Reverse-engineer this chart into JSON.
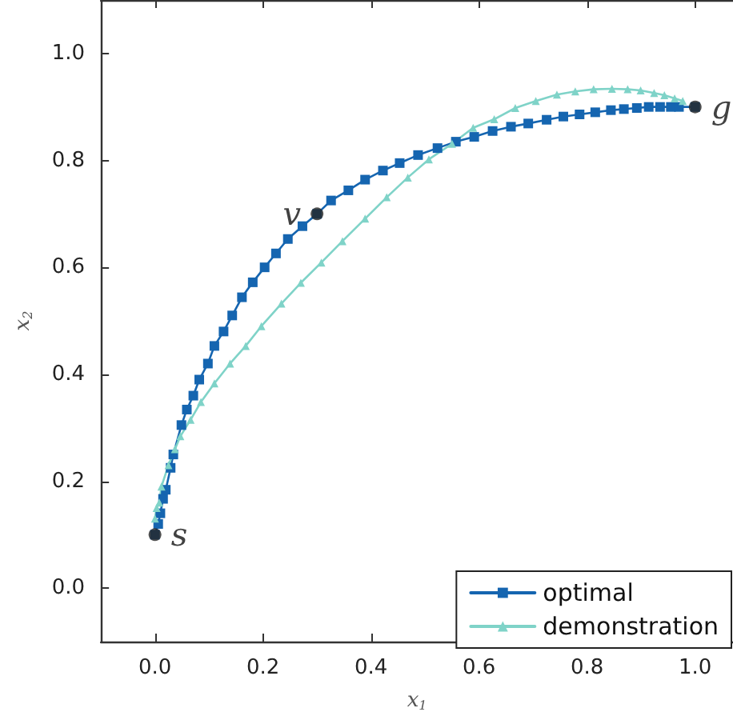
{
  "chart_data": {
    "type": "line",
    "xlabel": "x$_{1}$",
    "ylabel": "x$_{2}$",
    "x": [
      0,
      0.006,
      0.01,
      0.015,
      0.02,
      0.029,
      0.034,
      0.049,
      0.059,
      0.071,
      0.082,
      0.098,
      0.11,
      0.127,
      0.143,
      0.161,
      0.181,
      0.203,
      0.224,
      0.246,
      0.273,
      0.3,
      0.326,
      0.358,
      0.389,
      0.422,
      0.453,
      0.487,
      0.523,
      0.557,
      0.591,
      0.625,
      0.659,
      0.691,
      0.725,
      0.756,
      0.786,
      0.815,
      0.844,
      0.868,
      0.892,
      0.914,
      0.935,
      0.955,
      0.97,
      1.0
    ],
    "series": [
      {
        "name": "optimal",
        "color": "#1565b0",
        "marker": "square",
        "values": [
          0.1,
          0.12,
          0.14,
          0.167,
          0.184,
          0.225,
          0.25,
          0.305,
          0.334,
          0.36,
          0.39,
          0.42,
          0.453,
          0.48,
          0.51,
          0.544,
          0.572,
          0.6,
          0.626,
          0.653,
          0.677,
          0.7,
          0.725,
          0.744,
          0.764,
          0.781,
          0.795,
          0.81,
          0.823,
          0.835,
          0.844,
          0.855,
          0.863,
          0.869,
          0.876,
          0.882,
          0.886,
          0.89,
          0.894,
          0.896,
          0.898,
          0.9,
          0.9,
          0.9,
          0.9,
          0.9
        ]
      },
      {
        "name": "demonstration",
        "color": "#7fd3c8",
        "marker": "triangle",
        "x": [
          0,
          0.003,
          0.008,
          0.012,
          0.025,
          0.037,
          0.047,
          0.066,
          0.085,
          0.11,
          0.139,
          0.168,
          0.197,
          0.234,
          0.27,
          0.308,
          0.347,
          0.389,
          0.429,
          0.468,
          0.507,
          0.55,
          0.589,
          0.628,
          0.667,
          0.705,
          0.744,
          0.778,
          0.812,
          0.846,
          0.875,
          0.899,
          0.924,
          0.943,
          0.962,
          0.977
        ],
        "values": [
          0.13,
          0.15,
          0.16,
          0.19,
          0.23,
          0.26,
          0.284,
          0.315,
          0.348,
          0.383,
          0.42,
          0.453,
          0.49,
          0.532,
          0.571,
          0.609,
          0.649,
          0.691,
          0.731,
          0.768,
          0.802,
          0.831,
          0.861,
          0.877,
          0.898,
          0.911,
          0.923,
          0.929,
          0.933,
          0.934,
          0.933,
          0.931,
          0.926,
          0.922,
          0.916,
          0.911
        ]
      }
    ],
    "annotations": [
      {
        "text": "s",
        "x": 0,
        "y": 0.1
      },
      {
        "text": "v",
        "x": 0.3,
        "y": 0.7
      },
      {
        "text": "g",
        "x": 1.0,
        "y": 0.9
      }
    ],
    "xlim": [
      -0.1,
      1.07
    ],
    "ylim": [
      -0.1,
      1.1
    ],
    "xticks": [
      {
        "value": 0,
        "label": "0.0"
      },
      {
        "value": 0.2,
        "label": "0.2"
      },
      {
        "value": 0.4,
        "label": "0.4"
      },
      {
        "value": 0.6,
        "label": "0.6"
      },
      {
        "value": 0.8,
        "label": "0.8"
      },
      {
        "value": 1.0,
        "label": "1.0"
      }
    ],
    "yticks": [
      {
        "value": 0,
        "label": "0.0"
      },
      {
        "value": 0.2,
        "label": "0.2"
      },
      {
        "value": 0.4,
        "label": "0.4"
      },
      {
        "value": 0.6,
        "label": "0.6"
      },
      {
        "value": 0.8,
        "label": "0.8"
      },
      {
        "value": 1.0,
        "label": "1.0"
      }
    ],
    "grid": false,
    "legend": "bottom right",
    "line_style": "solid"
  }
}
